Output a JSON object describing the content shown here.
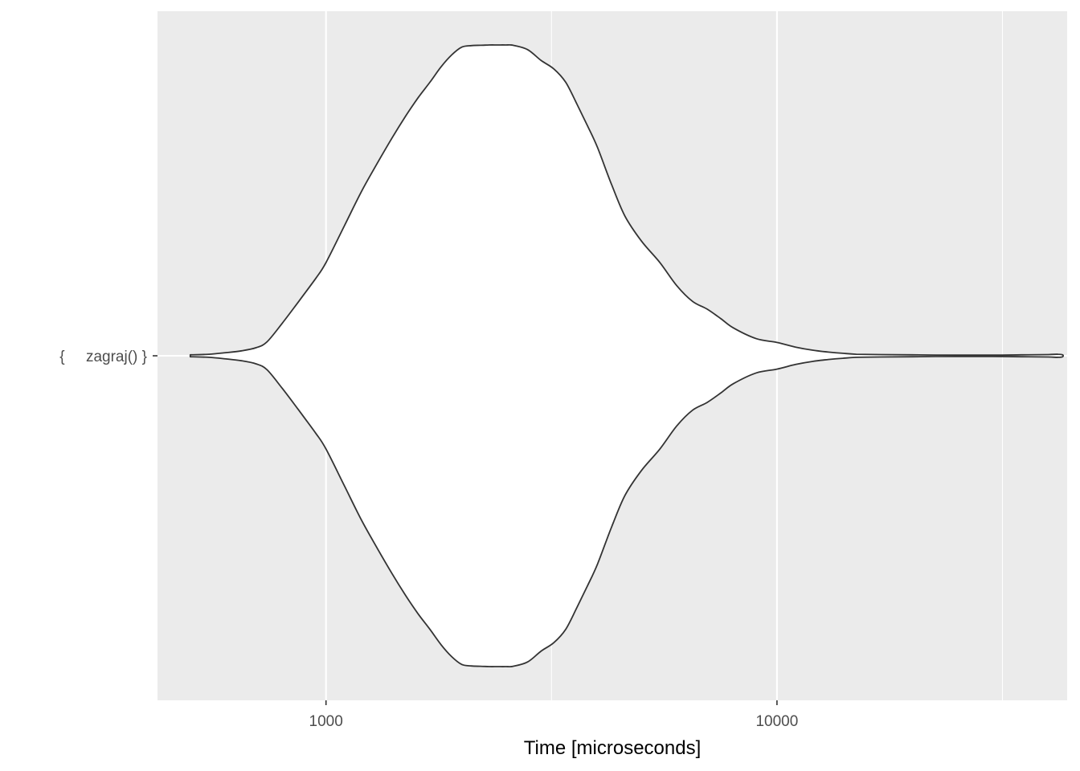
{
  "chart_data": {
    "type": "violin",
    "xlabel": "Time [microseconds]",
    "ylabel": "",
    "x_scale": "log10",
    "xlim": [
      423,
      44000
    ],
    "x_ticks": [
      1000,
      10000
    ],
    "x_tick_labels": [
      "1000",
      "10000"
    ],
    "grid": true,
    "colors": {
      "panel_background": "#ebebeb",
      "grid_line": "#ffffff",
      "violin_fill": "#ffffff",
      "violin_outline": "#333333",
      "tick_text": "#4d4d4d",
      "axis_title_text": "#000000"
    },
    "categories": [
      "{     zagraj() }"
    ],
    "series": [
      {
        "category": "{     zagraj() }",
        "density_scale": "relative width (1 = widest)",
        "x": [
          500,
          550,
          600,
          650,
          700,
          740,
          800,
          870,
          950,
          1000,
          1100,
          1200,
          1300,
          1400,
          1500,
          1600,
          1700,
          1800,
          1900,
          2000,
          2100,
          2200,
          2300,
          2400,
          2500,
          2600,
          2800,
          3000,
          3200,
          3400,
          3600,
          3800,
          4000,
          4300,
          4600,
          5000,
          5500,
          6000,
          6500,
          7000,
          7500,
          8000,
          9000,
          10000,
          11000,
          12000,
          13000,
          14000,
          15000,
          17000,
          20000,
          25000,
          30000,
          35000,
          40000,
          42000,
          43000
        ],
        "density": [
          0.003,
          0.005,
          0.01,
          0.016,
          0.026,
          0.045,
          0.105,
          0.175,
          0.25,
          0.3,
          0.42,
          0.53,
          0.62,
          0.7,
          0.77,
          0.83,
          0.88,
          0.93,
          0.968,
          0.993,
          0.998,
          0.999,
          1.0,
          1.0,
          1.0,
          0.999,
          0.985,
          0.95,
          0.923,
          0.88,
          0.81,
          0.74,
          0.67,
          0.55,
          0.45,
          0.37,
          0.3,
          0.225,
          0.175,
          0.15,
          0.12,
          0.09,
          0.055,
          0.043,
          0.028,
          0.018,
          0.012,
          0.008,
          0.005,
          0.004,
          0.003,
          0.002,
          0.002,
          0.003,
          0.004,
          0.005,
          0.003
        ]
      }
    ]
  }
}
